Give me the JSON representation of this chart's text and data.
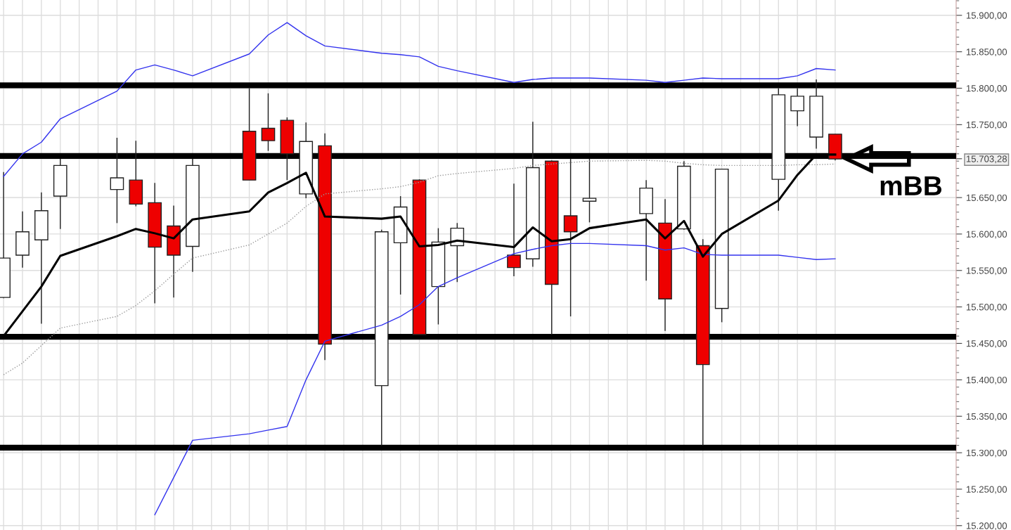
{
  "chart_data": {
    "type": "candlestick",
    "categories": [
      null,
      null,
      null,
      null,
      null,
      null,
      null,
      null,
      null,
      null,
      null,
      null,
      null,
      null,
      null,
      null,
      null,
      null,
      null,
      null,
      null,
      null,
      null,
      null,
      null,
      null,
      null,
      null,
      null,
      null,
      null,
      null,
      null,
      null,
      null,
      null,
      null,
      null,
      null,
      null,
      null,
      null,
      null,
      null,
      null
    ],
    "ohlc": [
      [
        15513,
        15685,
        15512,
        15567
      ],
      [
        15571,
        15631,
        15554,
        15603
      ],
      [
        15592,
        15657,
        15477,
        15632
      ],
      [
        15652,
        15703,
        15607,
        15694
      ],
      null,
      null,
      [
        15661,
        15732,
        15615,
        15677
      ],
      [
        15674,
        15728,
        15638,
        15641
      ],
      [
        15643,
        15670,
        15505,
        15582
      ],
      [
        15611,
        15639,
        15513,
        15571
      ],
      [
        15583,
        15703,
        15548,
        15694
      ],
      null,
      null,
      [
        15741,
        15800,
        15674,
        15674
      ],
      [
        15745,
        15793,
        15714,
        15728
      ],
      [
        15756,
        15760,
        15674,
        15710
      ],
      [
        15655,
        15753,
        15649,
        15727
      ],
      [
        15721,
        15738,
        15427,
        15449
      ],
      null,
      null,
      [
        15392,
        15606,
        15310,
        15603
      ],
      [
        15588,
        15652,
        15517,
        15637
      ],
      [
        15674,
        15675,
        15462,
        15462
      ],
      [
        15528,
        15608,
        15476,
        15589
      ],
      [
        15584,
        15615,
        15534,
        15608
      ],
      null,
      null,
      [
        15571,
        15669,
        15542,
        15554
      ],
      [
        15566,
        15754,
        15555,
        15691
      ],
      [
        15700,
        15701,
        15462,
        15531
      ],
      [
        15625,
        15703,
        15487,
        15603
      ],
      [
        15645,
        15703,
        15616,
        15649
      ],
      null,
      null,
      [
        15628,
        15674,
        15536,
        15663
      ],
      [
        15615,
        15648,
        15467,
        15511
      ],
      [
        15607,
        15700,
        15606,
        15693
      ],
      [
        15584,
        15593,
        15310,
        15421
      ],
      [
        15498,
        15689,
        15479,
        15689
      ],
      null,
      null,
      [
        15675,
        15800,
        15632,
        15791
      ],
      [
        15769,
        15800,
        15748,
        15789
      ],
      [
        15733,
        15812,
        15717,
        15789
      ],
      [
        15737,
        15737,
        15701,
        15703
      ]
    ],
    "colors": [
      "#ffffff",
      "#ffffff",
      "#ffffff",
      "#ffffff",
      null,
      null,
      "#ffffff",
      "#ee0000",
      "#ee0000",
      "#ee0000",
      "#ffffff",
      null,
      null,
      "#ee0000",
      "#ee0000",
      "#ee0000",
      "#ffffff",
      "#ee0000",
      null,
      null,
      "#ffffff",
      "#ffffff",
      "#ee0000",
      "#ffffff",
      "#ffffff",
      null,
      null,
      "#ee0000",
      "#ffffff",
      "#ee0000",
      "#ee0000",
      "#ffffff",
      null,
      null,
      "#ffffff",
      "#ee0000",
      "#ffffff",
      "#ee0000",
      "#ffffff",
      null,
      null,
      "#ffffff",
      "#ffffff",
      "#ffffff",
      "#ee0000"
    ],
    "series": [
      {
        "type": "line",
        "color": "#3333ee",
        "line_style": "solid",
        "values": [
          15679,
          15710,
          15726,
          15758,
          null,
          null,
          15796,
          15825,
          15832,
          15825,
          15817,
          null,
          null,
          15847,
          15873,
          15890,
          15872,
          15858,
          null,
          null,
          15848,
          15846,
          15843,
          15830,
          15824,
          null,
          null,
          15808,
          15812,
          15814,
          15814,
          15814,
          null,
          null,
          15811,
          15808,
          15811,
          15814,
          15813,
          null,
          null,
          15813,
          15817,
          15827,
          15825
        ]
      },
      {
        "type": "line",
        "color": "#3333ee",
        "line_style": "solid",
        "values": [
          null,
          null,
          null,
          null,
          null,
          null,
          null,
          null,
          15215,
          15266,
          15317,
          null,
          null,
          15326,
          15331,
          15336,
          15400,
          15453,
          null,
          null,
          15475,
          15487,
          15503,
          15528,
          15540,
          null,
          null,
          15573,
          15579,
          15584,
          15587,
          15587,
          null,
          null,
          15584,
          15578,
          15581,
          15572,
          15571,
          null,
          null,
          15571,
          15568,
          15565,
          15566
        ]
      },
      {
        "type": "line",
        "color": "#999999",
        "line_style": "dotted",
        "values": [
          15407,
          15423,
          15447,
          15471,
          null,
          null,
          15487,
          15502,
          15522,
          15545,
          15567,
          null,
          null,
          15585,
          15600,
          15615,
          15638,
          15655,
          null,
          null,
          15662,
          15665,
          15671,
          15680,
          15683,
          null,
          null,
          15690,
          15694,
          15696,
          15698,
          15700,
          null,
          null,
          15701,
          15700,
          15697,
          15695,
          15694,
          null,
          null,
          15694,
          15695,
          15695,
          15696
        ]
      },
      {
        "type": "line",
        "color": "#000000",
        "line_style": "solid",
        "values": [
          15460,
          15494,
          15528,
          15570,
          null,
          null,
          15597,
          15607,
          15601,
          15594,
          15620,
          null,
          null,
          15631,
          15657,
          15670,
          15684,
          15624,
          null,
          null,
          15621,
          15624,
          15583,
          15585,
          15591,
          null,
          null,
          15582,
          15609,
          15590,
          15593,
          15608,
          null,
          null,
          15620,
          15594,
          15618,
          15569,
          15600,
          null,
          null,
          15646,
          15681,
          15709,
          15709
        ]
      }
    ],
    "ref_lines": [
      {
        "axis": "y",
        "value": 15804,
        "color": "#000000"
      },
      {
        "axis": "y",
        "value": 15707,
        "color": "#000000"
      },
      {
        "axis": "y",
        "value": 15459,
        "color": "#000000"
      },
      {
        "axis": "y",
        "value": 15307,
        "color": "#000000"
      }
    ],
    "annotations": [
      "mBB"
    ],
    "ylim": [
      15194,
      15921
    ],
    "yticks": [
      {
        "value": 15200,
        "label": "15.200,00"
      },
      {
        "value": 15250,
        "label": "15.250,00"
      },
      {
        "value": 15300,
        "label": "15.300,00"
      },
      {
        "value": 15350,
        "label": "15.350,00"
      },
      {
        "value": 15400,
        "label": "15.400,00"
      },
      {
        "value": 15450,
        "label": "15.450,00"
      },
      {
        "value": 15500,
        "label": "15.500,00"
      },
      {
        "value": 15550,
        "label": "15.550,00"
      },
      {
        "value": 15600,
        "label": "15.600,00"
      },
      {
        "value": 15650,
        "label": "15.650,00"
      },
      {
        "value": 15703.28,
        "label": "15.703,28"
      },
      {
        "value": 15750,
        "label": "15.750,00"
      },
      {
        "value": 15800,
        "label": "15.800,00"
      },
      {
        "value": 15850,
        "label": "15.850,00"
      },
      {
        "value": 15900,
        "label": "15.900,00"
      }
    ],
    "grid": true,
    "tick_labels": "y"
  }
}
